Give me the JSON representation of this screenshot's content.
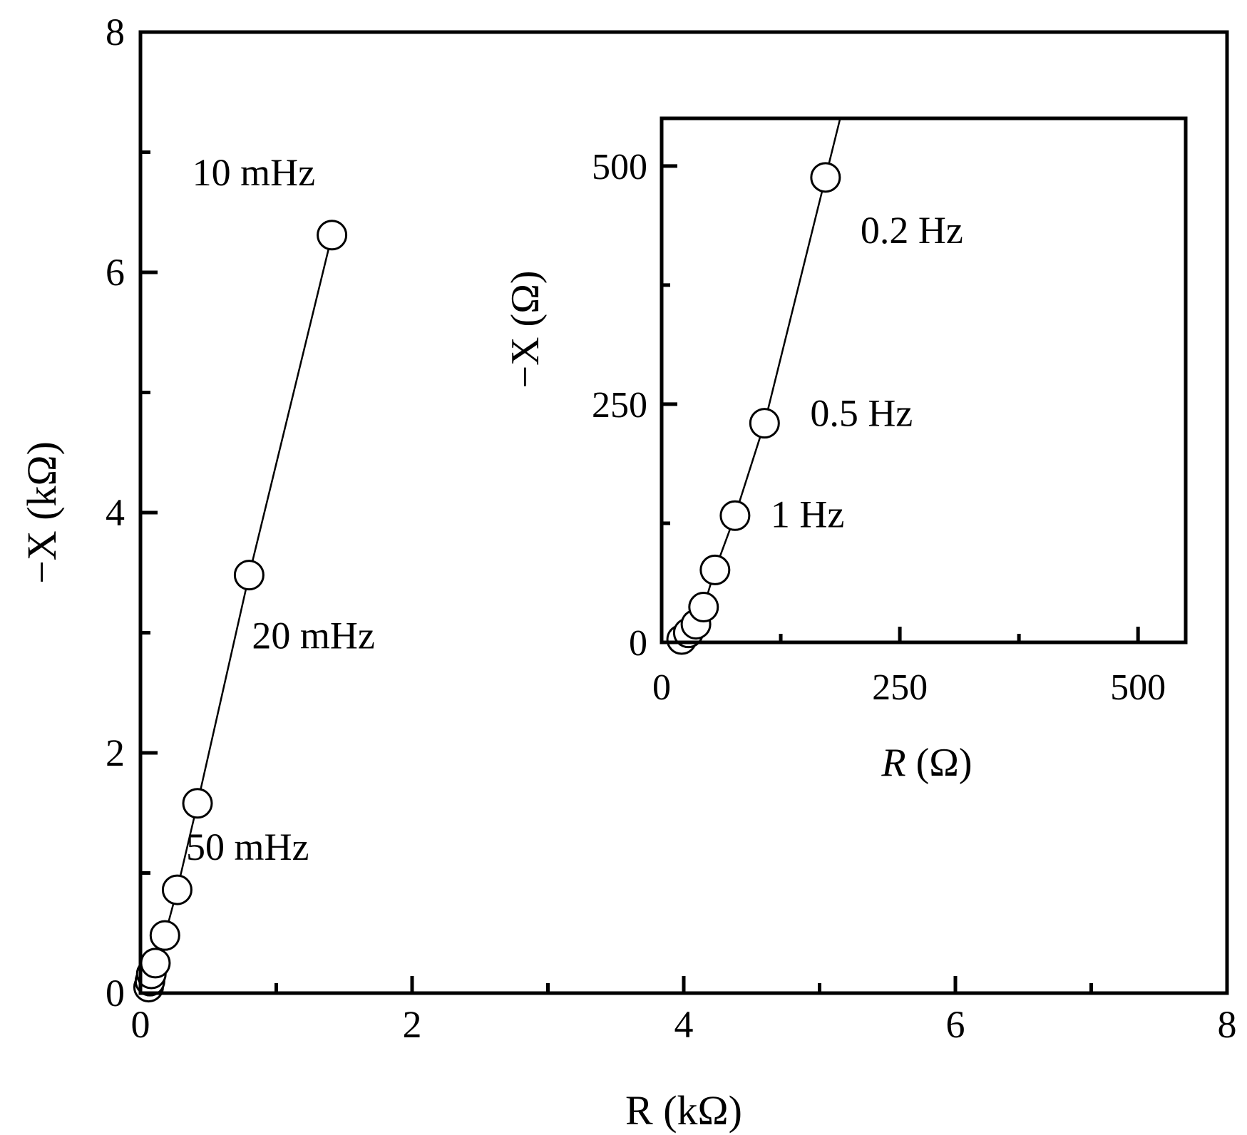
{
  "chart_data": [
    {
      "type": "scatter",
      "xlabel": "R (kΩ)",
      "ylabel": "−X (kΩ)",
      "xlim": [
        0,
        8
      ],
      "ylim": [
        0,
        8
      ],
      "x_ticks": [
        "0",
        "2",
        "4",
        "6",
        "8"
      ],
      "y_ticks": [
        "0",
        "2",
        "4",
        "6",
        "8"
      ],
      "grid": false,
      "series": [
        {
          "marker": "open-circle",
          "connected": true,
          "x": [
            0.06,
            0.07,
            0.08,
            0.11,
            0.18,
            0.27,
            0.42,
            0.8,
            1.41
          ],
          "y": [
            0.05,
            0.1,
            0.16,
            0.25,
            0.48,
            0.86,
            1.58,
            3.48,
            6.31
          ]
        }
      ],
      "annotations": [
        {
          "text": "10 mHz",
          "x": 1.41,
          "y": 6.31
        },
        {
          "text": "20 mHz",
          "x": 0.8,
          "y": 3.48
        },
        {
          "text": "50 mHz",
          "x": 0.42,
          "y": 1.58
        }
      ]
    },
    {
      "type": "scatter",
      "xlabel_italic": "R",
      "xlabel_rest": " (Ω)",
      "ylabel": "−X (Ω)",
      "xlim": [
        0,
        550
      ],
      "ylim": [
        0,
        550
      ],
      "x_ticks": [
        "0",
        "250",
        "500"
      ],
      "y_ticks": [
        "0",
        "250",
        "500"
      ],
      "grid": false,
      "series": [
        {
          "marker": "open-circle",
          "connected": true,
          "x": [
            21,
            28,
            36,
            44,
            56,
            77,
            108,
            172
          ],
          "y": [
            3,
            10,
            19,
            37,
            76,
            133,
            230,
            488
          ]
        }
      ],
      "annotations": [
        {
          "text": "0.2 Hz",
          "x": 172,
          "y": 488
        },
        {
          "text": "0.5 Hz",
          "x": 108,
          "y": 230
        },
        {
          "text": "1 Hz",
          "x": 77,
          "y": 133
        }
      ]
    }
  ]
}
